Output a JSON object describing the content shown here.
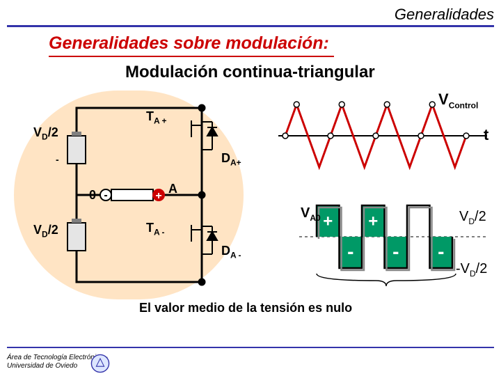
{
  "header": {
    "right": "Generalidades",
    "rule_color": "#3333aa"
  },
  "titles": {
    "t1": "Generalidades sobre modulación:",
    "t1_color": "#cc0000",
    "t2": "Modulación continua-triangular",
    "t2_color": "#000000"
  },
  "circuit": {
    "bg_color": "#ffe4c4",
    "wire_color": "#000000",
    "wire_width": 3,
    "battery": {
      "body_color": "#e5e5e5",
      "cap_color": "#808080"
    },
    "diode_fill": "#000000",
    "plus_fill": "#cc0000",
    "minus_fill": "#ffffff",
    "labels": {
      "vd2_top": "V",
      "vd2_top_sub": "D",
      "vd2_top_suffix": "/2",
      "vd2_bot": "V",
      "vd2_bot_sub": "D",
      "vd2_bot_suffix": "/2",
      "ta_plus": "T",
      "ta_plus_sub": "A +",
      "ta_minus": "T",
      "ta_minus_sub": "A -",
      "da_plus": "D",
      "da_plus_sub": "A+",
      "da_minus": "D",
      "da_minus_sub": "A -",
      "zero": "0",
      "A": "A",
      "minus_sign": "-"
    }
  },
  "wave": {
    "triangle_color": "#cc0000",
    "axis_color": "#000000",
    "marker_fill": "#ffffff",
    "marker_stroke": "#000000",
    "v_control": "V",
    "v_control_sub": "Control",
    "t_label": "t",
    "va0": "V",
    "va0_sub": "A0",
    "triangle_width": 3,
    "n_periods": 4
  },
  "square": {
    "zero_line_dash": "4,4",
    "plus_box_color": "#009966",
    "minus_box_color": "#009966",
    "plus_text": "+",
    "minus_text": "-",
    "vd2_label": "V",
    "vd2_sub": "D",
    "vd2_suffix": "/2",
    "neg_vd2_prefix": "-V",
    "neg_vd2_sub": "D",
    "neg_vd2_suffix": "/2",
    "brace_color": "#000000"
  },
  "caption": "El valor medio de la tensión es nulo",
  "footer": {
    "line1": "Área de Tecnología Electrónica -",
    "line2": "Universidad de Oviedo",
    "rule_color": "#3333aa"
  },
  "logo": {
    "bg": "#dde6ff",
    "ring": "#3333aa"
  }
}
